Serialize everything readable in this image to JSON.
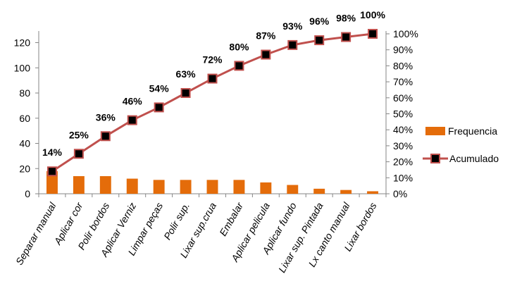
{
  "chart_data": {
    "type": "bar",
    "categories": [
      "Separar manual",
      "Aplicar cor",
      "Polir bordos",
      "Aplicar Verniz",
      "Limpar peças",
      "Polir sup.",
      "Lixar sup.crua",
      "Embalar",
      "Aplicar pelicula",
      "Aplicar fundo",
      "Lixar sup. Pintada",
      "Lx canto manual",
      "Lixar bordos"
    ],
    "series": [
      {
        "name": "Frequencia",
        "type": "bar",
        "axis": "left",
        "color": "#E46C0A",
        "values": [
          18,
          14,
          14,
          12,
          11,
          11,
          11,
          11,
          9,
          7,
          4,
          3,
          2
        ]
      },
      {
        "name": "Acumulado",
        "type": "line",
        "axis": "right",
        "line_color": "#C0504D",
        "marker_color": "#000000",
        "values": [
          0.14,
          0.25,
          0.36,
          0.46,
          0.54,
          0.63,
          0.72,
          0.8,
          0.87,
          0.93,
          0.96,
          0.98,
          1.0
        ],
        "labels": [
          "14%",
          "25%",
          "36%",
          "46%",
          "54%",
          "63%",
          "72%",
          "80%",
          "87%",
          "93%",
          "96%",
          "98%",
          "100%"
        ]
      }
    ],
    "left_axis": {
      "min": 0,
      "max": 127,
      "ticks": [
        0,
        20,
        40,
        60,
        80,
        100,
        120
      ]
    },
    "right_axis": {
      "min": 0,
      "max": 1,
      "ticks": [
        "0%",
        "10%",
        "20%",
        "30%",
        "40%",
        "50%",
        "60%",
        "70%",
        "80%",
        "90%",
        "100%"
      ]
    },
    "grid": false,
    "legend": "right"
  }
}
